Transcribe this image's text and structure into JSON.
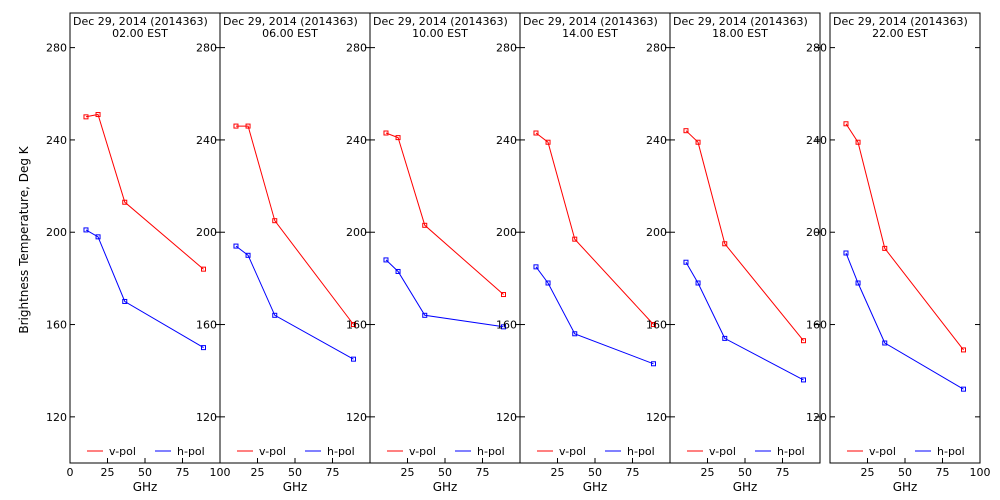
{
  "figure": {
    "ylabel": "Brightness Temperature, Deg K",
    "xlabel": "GHz"
  },
  "chart_data": [
    {
      "type": "line",
      "title_line1": "Dec 29, 2014 (2014363)",
      "title_line2": "02.00 EST",
      "xlabel": "GHz",
      "ylabel": "Brightness Temperature, Deg K",
      "xlim": [
        0,
        100
      ],
      "ylim": [
        100,
        295
      ],
      "xticks": [
        0,
        25,
        50,
        75,
        100
      ],
      "xtick_labels": [
        "0",
        "25",
        "50",
        "75",
        "100"
      ],
      "yticks": [
        120,
        160,
        200,
        240,
        280
      ],
      "ytick_labels": [
        "120",
        "160",
        "200",
        "240",
        "280"
      ],
      "legend": "bottom",
      "grid": false,
      "series": [
        {
          "name": "v-pol",
          "color": "#ff0000",
          "x": [
            10.65,
            18.7,
            36.5,
            89.0
          ],
          "y": [
            250,
            251,
            213,
            184
          ]
        },
        {
          "name": "h-pol",
          "color": "#0000ff",
          "x": [
            10.65,
            18.7,
            36.5,
            89.0
          ],
          "y": [
            201,
            198,
            170,
            150
          ]
        }
      ]
    },
    {
      "type": "line",
      "title_line1": "Dec 29, 2014 (2014363)",
      "title_line2": "06.00 EST",
      "xlabel": "GHz",
      "ylabel": "Brightness Temperature, Deg K",
      "xlim": [
        0,
        100
      ],
      "ylim": [
        100,
        295
      ],
      "xticks": [
        0,
        25,
        50,
        75,
        100
      ],
      "xtick_labels": [
        "",
        "25",
        "50",
        "75",
        ""
      ],
      "yticks": [
        120,
        160,
        200,
        240,
        280
      ],
      "ytick_labels": [
        "120",
        "160",
        "200",
        "240",
        "280"
      ],
      "legend": "bottom",
      "grid": false,
      "series": [
        {
          "name": "v-pol",
          "color": "#ff0000",
          "x": [
            10.65,
            18.7,
            36.5,
            89.0
          ],
          "y": [
            246,
            246,
            205,
            160
          ]
        },
        {
          "name": "h-pol",
          "color": "#0000ff",
          "x": [
            10.65,
            18.7,
            36.5,
            89.0
          ],
          "y": [
            194,
            190,
            164,
            145
          ]
        }
      ]
    },
    {
      "type": "line",
      "title_line1": "Dec 29, 2014 (2014363)",
      "title_line2": "10.00 EST",
      "xlabel": "GHz",
      "ylabel": "Brightness Temperature, Deg K",
      "xlim": [
        0,
        100
      ],
      "ylim": [
        100,
        295
      ],
      "xticks": [
        0,
        25,
        50,
        75,
        100
      ],
      "xtick_labels": [
        "",
        "25",
        "50",
        "75",
        ""
      ],
      "yticks": [
        120,
        160,
        200,
        240,
        280
      ],
      "ytick_labels": [
        "120",
        "160",
        "200",
        "240",
        "280"
      ],
      "legend": "bottom",
      "grid": false,
      "series": [
        {
          "name": "v-pol",
          "color": "#ff0000",
          "x": [
            10.65,
            18.7,
            36.5,
            89.0
          ],
          "y": [
            243,
            241,
            203,
            173
          ]
        },
        {
          "name": "h-pol",
          "color": "#0000ff",
          "x": [
            10.65,
            18.7,
            36.5,
            89.0
          ],
          "y": [
            188,
            183,
            164,
            159
          ]
        }
      ]
    },
    {
      "type": "line",
      "title_line1": "Dec 29, 2014 (2014363)",
      "title_line2": "14.00 EST",
      "xlabel": "GHz",
      "ylabel": "Brightness Temperature, Deg K",
      "xlim": [
        0,
        100
      ],
      "ylim": [
        100,
        295
      ],
      "xticks": [
        0,
        25,
        50,
        75,
        100
      ],
      "xtick_labels": [
        "",
        "25",
        "50",
        "75",
        ""
      ],
      "yticks": [
        120,
        160,
        200,
        240,
        280
      ],
      "ytick_labels": [
        "120",
        "160",
        "200",
        "240",
        "280"
      ],
      "legend": "bottom",
      "grid": false,
      "series": [
        {
          "name": "v-pol",
          "color": "#ff0000",
          "x": [
            10.65,
            18.7,
            36.5,
            89.0
          ],
          "y": [
            243,
            239,
            197,
            160
          ]
        },
        {
          "name": "h-pol",
          "color": "#0000ff",
          "x": [
            10.65,
            18.7,
            36.5,
            89.0
          ],
          "y": [
            185,
            178,
            156,
            143
          ]
        }
      ]
    },
    {
      "type": "line",
      "title_line1": "Dec 29, 2014 (2014363)",
      "title_line2": "18.00 EST",
      "xlabel": "GHz",
      "ylabel": "Brightness Temperature, Deg K",
      "xlim": [
        0,
        100
      ],
      "ylim": [
        100,
        295
      ],
      "xticks": [
        0,
        25,
        50,
        75,
        100
      ],
      "xtick_labels": [
        "",
        "25",
        "50",
        "75",
        ""
      ],
      "yticks": [
        120,
        160,
        200,
        240,
        280
      ],
      "ytick_labels": [
        "120",
        "160",
        "200",
        "240",
        "280"
      ],
      "legend": "bottom",
      "grid": false,
      "series": [
        {
          "name": "v-pol",
          "color": "#ff0000",
          "x": [
            10.65,
            18.7,
            36.5,
            89.0
          ],
          "y": [
            244,
            239,
            195,
            153
          ]
        },
        {
          "name": "h-pol",
          "color": "#0000ff",
          "x": [
            10.65,
            18.7,
            36.5,
            89.0
          ],
          "y": [
            187,
            178,
            154,
            136
          ]
        }
      ]
    },
    {
      "type": "line",
      "title_line1": "Dec 29, 2014 (2014363)",
      "title_line2": "22.00 EST",
      "xlabel": "GHz",
      "ylabel": "Brightness Temperature, Deg K",
      "xlim": [
        0,
        100
      ],
      "ylim": [
        100,
        295
      ],
      "xticks": [
        0,
        25,
        50,
        75,
        100
      ],
      "xtick_labels": [
        "",
        "25",
        "50",
        "75",
        "100"
      ],
      "yticks": [
        120,
        160,
        200,
        240,
        280
      ],
      "ytick_labels": [
        "120",
        "160",
        "200",
        "240",
        "280"
      ],
      "legend": "bottom",
      "grid": false,
      "series": [
        {
          "name": "v-pol",
          "color": "#ff0000",
          "x": [
            10.65,
            18.7,
            36.5,
            89.0
          ],
          "y": [
            247,
            239,
            193,
            149
          ]
        },
        {
          "name": "h-pol",
          "color": "#0000ff",
          "x": [
            10.65,
            18.7,
            36.5,
            89.0
          ],
          "y": [
            191,
            178,
            152,
            132
          ]
        }
      ]
    }
  ]
}
